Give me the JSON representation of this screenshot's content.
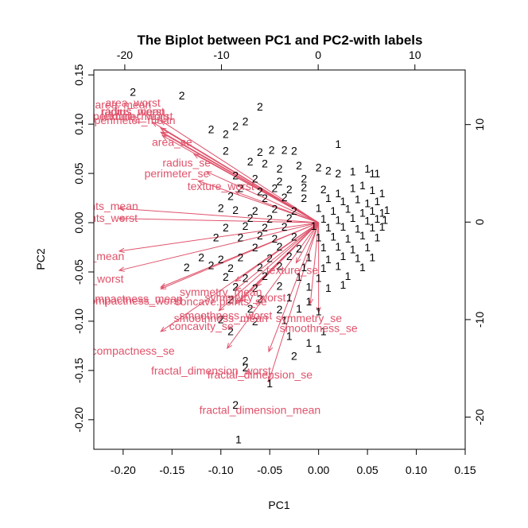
{
  "chart_data": {
    "type": "scatter",
    "title": "The Biplot between PC1 and PC2-with labels",
    "xlabel": "PC1",
    "ylabel": "PC2",
    "xlim": [
      -0.23,
      0.15
    ],
    "ylim": [
      -0.23,
      0.155
    ],
    "x_ticks": [
      "-0.20",
      "-0.15",
      "-0.10",
      "-0.05",
      "0.00",
      "0.05",
      "0.10",
      "0.15"
    ],
    "y_ticks": [
      "-0.20",
      "-0.15",
      "-0.10",
      "-0.05",
      "0.00",
      "0.05",
      "0.10",
      "0.15"
    ],
    "top_axis": {
      "lim": [
        -23.2,
        15.2
      ],
      "ticks": [
        "-20",
        "-10",
        "0",
        "10"
      ]
    },
    "right_axis": {
      "lim": [
        -23.3,
        15.6
      ],
      "ticks": [
        "-20",
        "-10",
        "0",
        "10"
      ]
    },
    "arrow_color": "#DF536B",
    "point_color": "#000000",
    "vectors": [
      {
        "name": "radius_mean",
        "x": -0.19,
        "y": 0.113
      },
      {
        "name": "texture_mean",
        "x": -0.188,
        "y": 0.108
      },
      {
        "name": "perimeter_mean",
        "x": -0.188,
        "y": 0.104
      },
      {
        "name": "area_mean",
        "x": -0.2,
        "y": 0.12
      },
      {
        "name": "smoothness_mean",
        "x": -0.1,
        "y": -0.097
      },
      {
        "name": "compactness_mean",
        "x": -0.19,
        "y": -0.077
      },
      {
        "name": "concavity_mean",
        "x": -0.24,
        "y": -0.034
      },
      {
        "name": "concave.points_mean",
        "x": -0.24,
        "y": 0.017
      },
      {
        "name": "symmetry_mean",
        "x": -0.1,
        "y": -0.07
      },
      {
        "name": "fractal_dimension_mean",
        "x": -0.06,
        "y": -0.19
      },
      {
        "name": "radius_se",
        "x": -0.135,
        "y": 0.061
      },
      {
        "name": "texture_se",
        "x": -0.027,
        "y": -0.048
      },
      {
        "name": "perimeter_se",
        "x": -0.145,
        "y": 0.05
      },
      {
        "name": "area_se",
        "x": -0.15,
        "y": 0.082
      },
      {
        "name": "smoothness_se",
        "x": 0.0,
        "y": -0.107
      },
      {
        "name": "compactness_se",
        "x": -0.19,
        "y": -0.13
      },
      {
        "name": "concavity_se",
        "x": -0.12,
        "y": -0.105
      },
      {
        "name": "concave.points_se",
        "x": -0.1,
        "y": -0.08
      },
      {
        "name": "symmetry_se",
        "x": -0.01,
        "y": -0.097
      },
      {
        "name": "fractal_dimension_se",
        "x": -0.06,
        "y": -0.154
      },
      {
        "name": "radius_worst",
        "x": -0.19,
        "y": 0.113
      },
      {
        "name": "texture_worst",
        "x": -0.1,
        "y": 0.037
      },
      {
        "name": "perimeter_worst",
        "x": -0.19,
        "y": 0.108
      },
      {
        "name": "area_worst",
        "x": -0.19,
        "y": 0.122
      },
      {
        "name": "smoothness_worst",
        "x": -0.095,
        "y": -0.094
      },
      {
        "name": "compactness_worst",
        "x": -0.19,
        "y": -0.079
      },
      {
        "name": "concavity_worst",
        "x": -0.24,
        "y": -0.057
      },
      {
        "name": "concave.points_worst",
        "x": -0.24,
        "y": 0.005
      },
      {
        "name": "symmetry_worst",
        "x": -0.075,
        "y": -0.076
      },
      {
        "name": "fractal_dimension_worst",
        "x": -0.11,
        "y": -0.15
      }
    ],
    "points": [
      [
        "2",
        -0.19,
        0.133
      ],
      [
        "2",
        -0.14,
        0.129
      ],
      [
        "2",
        -0.06,
        0.118
      ],
      [
        "2",
        -0.075,
        0.103
      ],
      [
        "2",
        -0.11,
        0.095
      ],
      [
        "2",
        -0.085,
        0.098
      ],
      [
        "2",
        -0.095,
        0.09
      ],
      [
        "1",
        0.02,
        0.08
      ],
      [
        "2",
        -0.095,
        0.073
      ],
      [
        "2",
        -0.06,
        0.072
      ],
      [
        "2",
        -0.048,
        0.074
      ],
      [
        "2",
        -0.035,
        0.074
      ],
      [
        "2",
        -0.025,
        0.073
      ],
      [
        "2",
        -0.07,
        0.062
      ],
      [
        "2",
        -0.055,
        0.06
      ],
      [
        "2",
        -0.04,
        0.055
      ],
      [
        "2",
        -0.02,
        0.058
      ],
      [
        "2",
        0.0,
        0.056
      ],
      [
        "2",
        0.01,
        0.053
      ],
      [
        "2",
        -0.085,
        0.048
      ],
      [
        "2",
        -0.065,
        0.045
      ],
      [
        "2",
        -0.04,
        0.042
      ],
      [
        "2",
        -0.015,
        0.045
      ],
      [
        "2",
        0.02,
        0.05
      ],
      [
        "1",
        0.035,
        0.052
      ],
      [
        "1",
        0.05,
        0.055
      ],
      [
        "1",
        0.055,
        0.05
      ],
      [
        "1",
        0.06,
        0.05
      ],
      [
        "2",
        -0.08,
        0.035
      ],
      [
        "2",
        -0.06,
        0.032
      ],
      [
        "2",
        -0.045,
        0.035
      ],
      [
        "2",
        -0.03,
        0.034
      ],
      [
        "2",
        -0.015,
        0.036
      ],
      [
        "2",
        0.005,
        0.034
      ],
      [
        "1",
        0.02,
        0.03
      ],
      [
        "1",
        0.035,
        0.035
      ],
      [
        "1",
        0.045,
        0.038
      ],
      [
        "1",
        0.055,
        0.033
      ],
      [
        "1",
        0.065,
        0.03
      ],
      [
        "2",
        -0.09,
        0.027
      ],
      [
        "2",
        -0.055,
        0.025
      ],
      [
        "2",
        -0.035,
        0.026
      ],
      [
        "2",
        -0.015,
        0.025
      ],
      [
        "1",
        0.01,
        0.025
      ],
      [
        "1",
        0.025,
        0.022
      ],
      [
        "1",
        0.04,
        0.024
      ],
      [
        "1",
        0.05,
        0.02
      ],
      [
        "1",
        0.06,
        0.022
      ],
      [
        "2",
        -0.1,
        0.015
      ],
      [
        "2",
        -0.085,
        0.013
      ],
      [
        "2",
        -0.065,
        0.012
      ],
      [
        "2",
        -0.045,
        0.014
      ],
      [
        "2",
        -0.025,
        0.012
      ],
      [
        "1",
        0.0,
        0.015
      ],
      [
        "1",
        0.015,
        0.012
      ],
      [
        "1",
        0.03,
        0.014
      ],
      [
        "1",
        0.045,
        0.01
      ],
      [
        "1",
        0.055,
        0.012
      ],
      [
        "1",
        0.065,
        0.01
      ],
      [
        "1",
        0.07,
        0.013
      ],
      [
        "2",
        -0.07,
        0.005
      ],
      [
        "2",
        -0.05,
        0.004
      ],
      [
        "2",
        -0.03,
        0.005
      ],
      [
        "1",
        0.005,
        0.004
      ],
      [
        "1",
        0.02,
        0.003
      ],
      [
        "1",
        0.035,
        0.005
      ],
      [
        "1",
        0.05,
        0.002
      ],
      [
        "1",
        0.06,
        0.004
      ],
      [
        "1",
        0.068,
        0.003
      ],
      [
        "2",
        -0.095,
        -0.005
      ],
      [
        "2",
        -0.075,
        -0.003
      ],
      [
        "2",
        -0.055,
        -0.005
      ],
      [
        "2",
        -0.035,
        -0.004
      ],
      [
        "1",
        -0.005,
        -0.003
      ],
      [
        "1",
        0.01,
        -0.005
      ],
      [
        "1",
        0.025,
        -0.004
      ],
      [
        "1",
        0.04,
        -0.006
      ],
      [
        "1",
        0.055,
        -0.005
      ],
      [
        "1",
        0.065,
        -0.004
      ],
      [
        "2",
        -0.105,
        -0.015
      ],
      [
        "2",
        -0.08,
        -0.015
      ],
      [
        "2",
        -0.06,
        -0.013
      ],
      [
        "2",
        -0.045,
        -0.016
      ],
      [
        "2",
        -0.025,
        -0.014
      ],
      [
        "1",
        0.0,
        -0.015
      ],
      [
        "1",
        0.015,
        -0.014
      ],
      [
        "1",
        0.03,
        -0.016
      ],
      [
        "1",
        0.045,
        -0.013
      ],
      [
        "1",
        0.06,
        -0.015
      ],
      [
        "2",
        -0.065,
        -0.025
      ],
      [
        "2",
        -0.04,
        -0.024
      ],
      [
        "2",
        -0.02,
        -0.026
      ],
      [
        "1",
        0.005,
        -0.025
      ],
      [
        "1",
        0.02,
        -0.024
      ],
      [
        "1",
        0.035,
        -0.027
      ],
      [
        "1",
        0.05,
        -0.025
      ],
      [
        "2",
        -0.12,
        -0.035
      ],
      [
        "2",
        -0.1,
        -0.037
      ],
      [
        "2",
        -0.08,
        -0.035
      ],
      [
        "2",
        -0.05,
        -0.036
      ],
      [
        "2",
        -0.03,
        -0.034
      ],
      [
        "1",
        -0.01,
        -0.035
      ],
      [
        "1",
        0.01,
        -0.037
      ],
      [
        "1",
        0.025,
        -0.034
      ],
      [
        "1",
        0.04,
        -0.036
      ],
      [
        "1",
        0.055,
        -0.035
      ],
      [
        "2",
        -0.135,
        -0.045
      ],
      [
        "2",
        -0.11,
        -0.043
      ],
      [
        "2",
        -0.09,
        -0.046
      ],
      [
        "2",
        -0.06,
        -0.045
      ],
      [
        "2",
        -0.04,
        -0.044
      ],
      [
        "1",
        -0.015,
        -0.045
      ],
      [
        "1",
        0.005,
        -0.046
      ],
      [
        "1",
        0.02,
        -0.044
      ],
      [
        "1",
        0.045,
        -0.045
      ],
      [
        "2",
        -0.095,
        -0.055
      ],
      [
        "2",
        -0.075,
        -0.056
      ],
      [
        "2",
        -0.055,
        -0.054
      ],
      [
        "1",
        -0.02,
        -0.055
      ],
      [
        "1",
        0.0,
        -0.056
      ],
      [
        "1",
        0.03,
        -0.054
      ],
      [
        "2",
        -0.085,
        -0.065
      ],
      [
        "2",
        -0.065,
        -0.066
      ],
      [
        "2",
        -0.04,
        -0.064
      ],
      [
        "1",
        -0.01,
        -0.065
      ],
      [
        "1",
        0.01,
        -0.066
      ],
      [
        "1",
        0.025,
        -0.063
      ],
      [
        "2",
        -0.09,
        -0.078
      ],
      [
        "2",
        -0.06,
        -0.077
      ],
      [
        "1",
        -0.03,
        -0.076
      ],
      [
        "1",
        -0.01,
        -0.08
      ],
      [
        "2",
        -0.07,
        -0.087
      ],
      [
        "2",
        -0.04,
        -0.088
      ],
      [
        "1",
        -0.02,
        -0.087
      ],
      [
        "1",
        0.0,
        -0.09
      ],
      [
        "2",
        -0.1,
        -0.098
      ],
      [
        "2",
        -0.065,
        -0.1
      ],
      [
        "1",
        -0.035,
        -0.099
      ],
      [
        "1",
        0.005,
        -0.11
      ],
      [
        "2",
        -0.09,
        -0.11
      ],
      [
        "1",
        -0.03,
        -0.115
      ],
      [
        "1",
        -0.01,
        -0.122
      ],
      [
        "1",
        0.0,
        -0.128
      ],
      [
        "2",
        -0.075,
        -0.14
      ],
      [
        "2",
        -0.075,
        -0.147
      ],
      [
        "2",
        -0.025,
        -0.135
      ],
      [
        "1",
        -0.05,
        -0.163
      ],
      [
        "2",
        -0.085,
        -0.185
      ],
      [
        "1",
        -0.082,
        -0.22
      ]
    ]
  }
}
